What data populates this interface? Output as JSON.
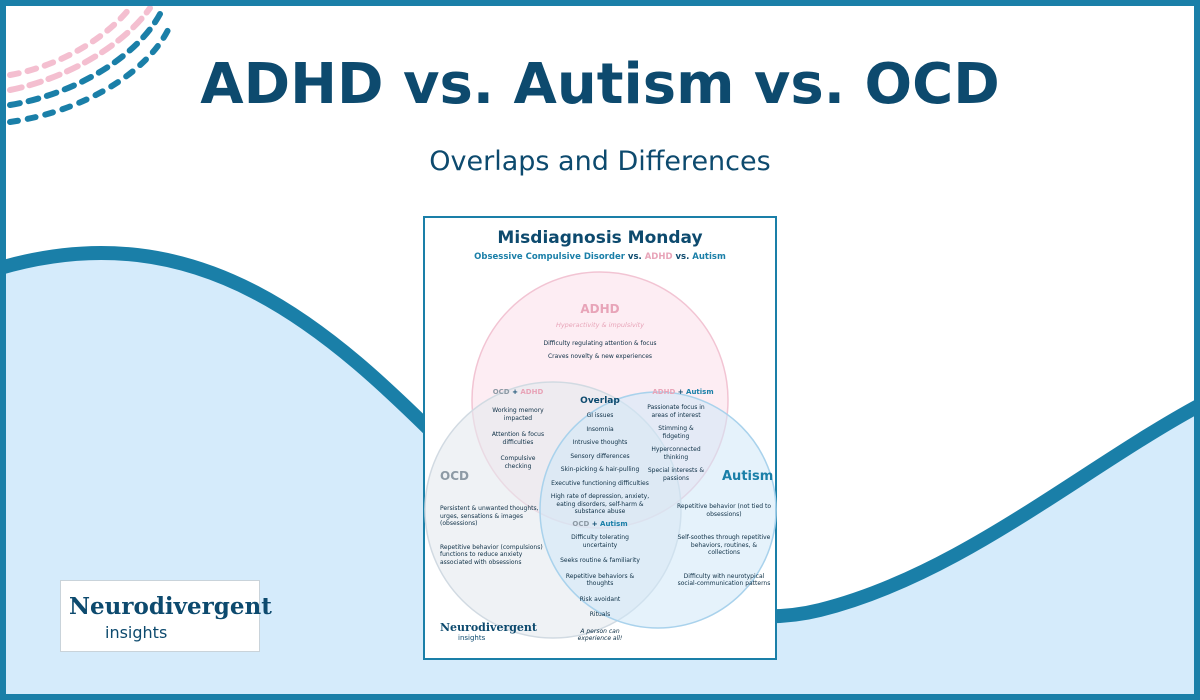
{
  "header": {
    "title": "ADHD vs. Autism vs. OCD",
    "subtitle": "Overlaps and Differences"
  },
  "logo": {
    "name": "Neurodivergent",
    "tagline": "insights"
  },
  "card": {
    "title": "Misdiagnosis Monday",
    "subtitle": [
      "Obsessive Compulsive Disorder",
      "vs.",
      "ADHD",
      "vs.",
      "Autism"
    ],
    "adhd": {
      "label": "ADHD",
      "tagline": "Hyperactivity & impulsivity",
      "items": [
        "Difficulty regulating attention & focus",
        "Craves novelty & new experiences"
      ]
    },
    "ocd_adhd": {
      "label": [
        "OCD",
        "+",
        "ADHD"
      ],
      "items": [
        "Working memory impacted",
        "Attention & focus difficulties",
        "Compulsive checking"
      ]
    },
    "adhd_autism": {
      "label": [
        "ADHD",
        "+",
        "Autism"
      ],
      "items": [
        "Passionate focus in areas of interest",
        "Stimming & fidgeting",
        "Hyperconnected thinking",
        "Special interests & passions"
      ]
    },
    "overlap": {
      "label": "Overlap",
      "items": [
        "GI issues",
        "Insomnia",
        "Intrusive thoughts",
        "Sensory differences",
        "Skin-picking & hair-pulling",
        "Executive functioning difficulties",
        "High rate of depression, anxiety, eating disorders, self-harm & substance abuse"
      ]
    },
    "ocd": {
      "label": "OCD",
      "items": [
        "Persistent & unwanted thoughts, urges, sensations & images (obsessions)",
        "Repetitive behavior (compulsions) functions to reduce anxiety associated with obsessions"
      ]
    },
    "autism": {
      "label": "Autism",
      "items": [
        "Repetitive behavior (not tied to obsessions)",
        "Self-soothes through repetitive behaviors, routines, & collections",
        "Difficulty with neurotypical social-communication patterns"
      ]
    },
    "ocd_autism": {
      "label": [
        "OCD",
        "+",
        "Autism"
      ],
      "items": [
        "Difficulty tolerating uncertainty",
        "Seeks routine & familiarity",
        "Repetitive behaviors & thoughts",
        "Risk avoidant",
        "Rituals"
      ]
    },
    "footer": {
      "logo_name": "Neurodivergent",
      "logo_tagline": "insights",
      "note": "A person can experience all!"
    }
  }
}
